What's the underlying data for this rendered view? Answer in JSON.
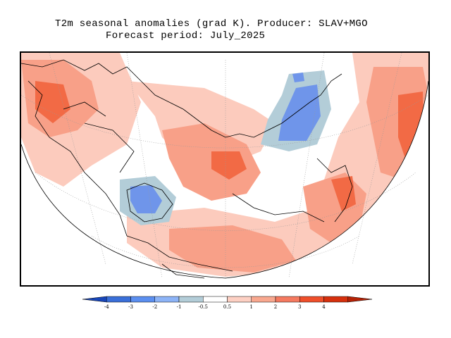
{
  "title": {
    "line1": "T2m seasonal anomalies (grad K). Producer: SLAV+MGO",
    "line2": "Forecast period:  July_2025"
  },
  "colorbar": {
    "colors": [
      "#1846b8",
      "#3a6fd9",
      "#5b8ff0",
      "#8db4f7",
      "#b3cdd8",
      "#ffffff",
      "#fdd0c3",
      "#f9a88f",
      "#f57a60",
      "#ef4f2a",
      "#d6300d",
      "#b52206"
    ],
    "ticks": [
      "-4",
      "-3",
      "-2",
      "-1",
      "-0.5",
      "0.5",
      "1",
      "2",
      "3",
      "4"
    ]
  },
  "map": {
    "type": "polar stereographic anomaly map",
    "variable": "T2m",
    "anomaly_colors": {
      "warm_light": "#fccbbd",
      "warm_medium": "#f8a088",
      "warm_strong": "#f26a45",
      "cold_light": "#b3cdd8",
      "cold_medium": "#6f95ea"
    }
  }
}
